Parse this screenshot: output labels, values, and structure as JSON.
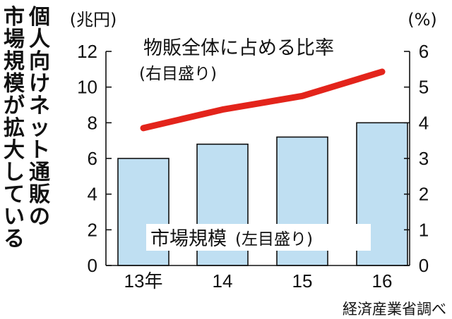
{
  "chart_data": {
    "type": "bar",
    "title": "個人向けネット通販の市場規模が拡大している",
    "categories": [
      "13年",
      "14",
      "15",
      "16"
    ],
    "series": [
      {
        "name": "市場規模",
        "axis_note": "(左目盛り)",
        "type": "bar",
        "axis": "left",
        "values": [
          6.0,
          6.8,
          7.2,
          8.0
        ],
        "color": "#bfdff2"
      },
      {
        "name": "物販全体に占める比率",
        "axis_note": "(右目盛り)",
        "type": "line",
        "axis": "right",
        "values": [
          3.85,
          4.37,
          4.75,
          5.43
        ],
        "color": "#e3241b"
      }
    ],
    "left_axis": {
      "unit": "(兆円)",
      "ylim": [
        0,
        12
      ],
      "ticks": [
        "0",
        "2",
        "4",
        "6",
        "8",
        "10",
        "12"
      ]
    },
    "right_axis": {
      "unit": "(%)",
      "ylim": [
        0,
        6
      ],
      "ticks": [
        "0",
        "1",
        "2",
        "3",
        "4",
        "5",
        "6"
      ]
    },
    "source": "経済産業省調べ",
    "grid": false,
    "legend": "none"
  }
}
